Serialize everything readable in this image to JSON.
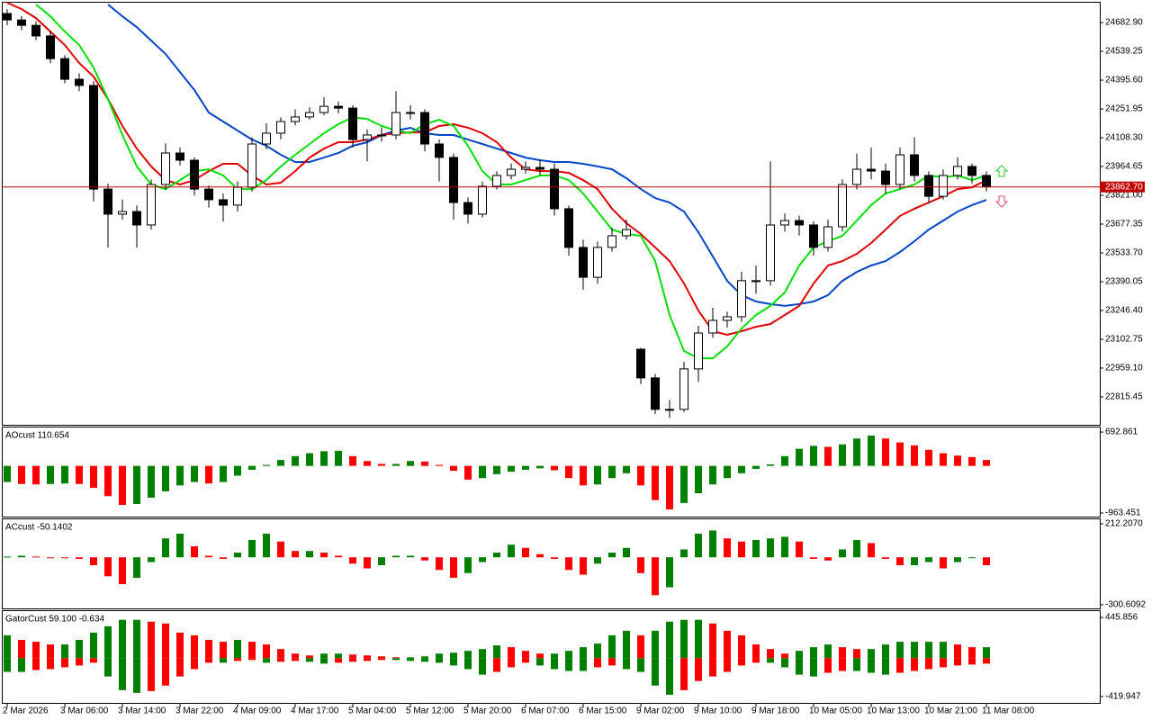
{
  "chart_data": [
    {
      "type": "candlestick",
      "categories": [
        "2 Mar 2026",
        null,
        null,
        null,
        "3 Mar 06:00",
        null,
        null,
        null,
        "3 Mar 14:00",
        null,
        null,
        null,
        "3 Mar 22:00",
        null,
        null,
        null,
        "4 Mar 09:00",
        null,
        null,
        null,
        "4 Mar 17:00",
        null,
        null,
        null,
        "5 Mar 04:00",
        null,
        null,
        null,
        "5 Mar 12:00",
        null,
        null,
        null,
        "5 Mar 20:00",
        null,
        null,
        null,
        "6 Mar 07:00",
        null,
        null,
        null,
        "6 Mar 15:00",
        null,
        null,
        null,
        "9 Mar 02:00",
        null,
        null,
        null,
        "9 Mar 10:00",
        null,
        null,
        null,
        "9 Mar 18:00",
        null,
        null,
        null,
        "10 Mar 05:00",
        null,
        null,
        null,
        "10 Mar 13:00",
        null,
        null,
        null,
        "10 Mar 21:00",
        null,
        null,
        null,
        "11 Mar 08:00"
      ],
      "open": [
        24728,
        24696,
        24669,
        24616,
        24503,
        24400,
        24369,
        23852,
        23727,
        23740,
        23673,
        23875,
        24032,
        23996,
        23852,
        23799,
        23772,
        23861,
        24077,
        24131,
        24189,
        24212,
        24234,
        24265,
        24256,
        24099,
        24122,
        24122,
        24234,
        24234,
        24077,
        24010,
        23785,
        23727,
        23866,
        23920,
        23951,
        23960,
        23951,
        23754,
        23561,
        23412,
        23561,
        23619,
        23053,
        22910,
        22753,
        22753,
        22955,
        23134,
        23197,
        23215,
        23395,
        23395,
        23673,
        23695,
        23673,
        23561,
        23664,
        23875,
        23951,
        23942,
        23875,
        24023,
        23920,
        23816,
        23920,
        23965,
        23920
      ],
      "high": [
        24750,
        24715,
        24690,
        24640,
        24520,
        24430,
        24390,
        23880,
        23800,
        23770,
        23900,
        24080,
        24060,
        24010,
        23870,
        23830,
        23890,
        24110,
        24180,
        24210,
        24250,
        24260,
        24310,
        24290,
        24270,
        24150,
        24160,
        24340,
        24270,
        24250,
        24100,
        24030,
        23810,
        23890,
        23940,
        23980,
        23990,
        24000,
        23980,
        23770,
        23600,
        23590,
        23660,
        23700,
        23060,
        22930,
        22800,
        22990,
        23170,
        23260,
        23240,
        23440,
        23470,
        23990,
        23730,
        23720,
        23690,
        23700,
        23900,
        24030,
        24060,
        23980,
        24060,
        24110,
        23940,
        23950,
        24010,
        23980,
        23940
      ],
      "low": [
        24670,
        24645,
        24595,
        24480,
        24380,
        24340,
        23790,
        23560,
        23700,
        23560,
        23650,
        23850,
        23970,
        23820,
        23760,
        23690,
        23740,
        23840,
        24050,
        24100,
        24170,
        24200,
        24220,
        24230,
        24060,
        23990,
        24090,
        24100,
        24200,
        24040,
        23890,
        23700,
        23680,
        23710,
        23850,
        23900,
        23930,
        23920,
        23720,
        23520,
        23350,
        23380,
        23540,
        23600,
        22880,
        22730,
        22710,
        22740,
        22890,
        23110,
        23160,
        23190,
        23330,
        23370,
        23640,
        23620,
        23520,
        23540,
        23640,
        23850,
        23900,
        23830,
        23850,
        23890,
        23780,
        23800,
        23900,
        23880,
        23840
      ],
      "close": [
        24696,
        24669,
        24616,
        24503,
        24400,
        24369,
        23852,
        23727,
        23740,
        23673,
        23875,
        24032,
        23996,
        23852,
        23799,
        23772,
        23861,
        24077,
        24131,
        24189,
        24212,
        24234,
        24265,
        24256,
        24099,
        24122,
        24122,
        24234,
        24234,
        24077,
        24010,
        23785,
        23727,
        23866,
        23920,
        23951,
        23960,
        23951,
        23754,
        23561,
        23412,
        23561,
        23619,
        23650,
        22910,
        22753,
        22753,
        22955,
        23134,
        23197,
        23215,
        23395,
        23395,
        23673,
        23695,
        23673,
        23561,
        23664,
        23875,
        23951,
        23942,
        23875,
        24023,
        23920,
        23816,
        23920,
        23965,
        23920,
        23863
      ],
      "up_color": "#ffffff",
      "down_color": "#000000",
      "lines": [
        {
          "color": "#0046c8",
          "values": [
            null,
            null,
            null,
            null,
            null,
            null,
            null,
            24773,
            24714,
            24660,
            24593,
            24526,
            24436,
            24346,
            24234,
            24189,
            24144,
            24099,
            24068,
            24023,
            23987,
            23987,
            24009,
            24032,
            24068,
            24086,
            24122,
            24144,
            24158,
            24131,
            24122,
            24122,
            24099,
            24077,
            24054,
            24032,
            24009,
            23996,
            23987,
            23987,
            23978,
            23965,
            23951,
            23906,
            23852,
            23807,
            23785,
            23740,
            23637,
            23516,
            23394,
            23323,
            23291,
            23278,
            23269,
            23278,
            23291,
            23323,
            23394,
            23439,
            23471,
            23493,
            23538,
            23592,
            23650,
            23695,
            23740,
            23772,
            23798
          ]
        },
        {
          "color": "#e00000",
          "values": [
            24782,
            24750,
            24705,
            24638,
            24571,
            24481,
            24413,
            24301,
            24167,
            24054,
            23965,
            23897,
            23875,
            23897,
            23942,
            23978,
            23978,
            23920,
            23875,
            23884,
            23942,
            24009,
            24054,
            24086,
            24086,
            24099,
            24122,
            24131,
            24135,
            24135,
            24167,
            24176,
            24158,
            24131,
            24086,
            24009,
            23951,
            23942,
            23942,
            23933,
            23897,
            23852,
            23754,
            23682,
            23628,
            23561,
            23493,
            23381,
            23246,
            23143,
            23125,
            23143,
            23165,
            23179,
            23224,
            23269,
            23381,
            23471,
            23493,
            23529,
            23583,
            23650,
            23718,
            23754,
            23785,
            23816,
            23852,
            23861,
            23897
          ]
        },
        {
          "color": "#00e000",
          "values": [
            null,
            null,
            24773,
            24714,
            24638,
            24571,
            24458,
            24301,
            24122,
            23965,
            23875,
            23852,
            23897,
            23942,
            23951,
            23920,
            23852,
            23852,
            23897,
            23965,
            24023,
            24077,
            24131,
            24176,
            24211,
            24202,
            24167,
            24144,
            24131,
            24176,
            24198,
            24167,
            24068,
            23942,
            23875,
            23875,
            23897,
            23920,
            23920,
            23897,
            23830,
            23740,
            23650,
            23628,
            23619,
            23493,
            23224,
            23044,
            23008,
            23008,
            23067,
            23157,
            23224,
            23269,
            23336,
            23471,
            23561,
            23592,
            23619,
            23695,
            23772,
            23830,
            23852,
            23875,
            23920,
            23911,
            23920,
            23897,
            23920
          ]
        }
      ],
      "current_price": {
        "value": 23862.7,
        "label": "23862.70"
      },
      "current_price_color": "#c00000",
      "ylim": [
        22676,
        24782
      ],
      "yticks": [
        {
          "value": 24682.9,
          "label": "24682.90"
        },
        24539.25,
        {
          "value": 24395.6,
          "label": "24395.60"
        },
        24251.95,
        {
          "value": 24108.3,
          "label": "24108.30"
        },
        23964.65,
        {
          "value": 23821.0,
          "label": "23821.00"
        },
        23677.35,
        {
          "value": 23533.7,
          "label": "23533.70"
        },
        23390.05,
        {
          "value": 23246.4,
          "label": "23246.40"
        },
        23102.75,
        {
          "value": 22959.1,
          "label": "22959.10"
        },
        22815.45
      ]
    },
    {
      "type": "bar",
      "title": "AOcust 110.654",
      "values": [
        -330,
        -370,
        -380,
        -370,
        -360,
        -370,
        -450,
        -620,
        -800,
        -780,
        -650,
        -520,
        -400,
        -330,
        -360,
        -330,
        -200,
        -80,
        20,
        120,
        200,
        260,
        300,
        310,
        200,
        100,
        40,
        40,
        100,
        90,
        20,
        -100,
        -280,
        -250,
        -170,
        -120,
        -80,
        -50,
        -90,
        -250,
        -400,
        -380,
        -250,
        -150,
        -400,
        -700,
        -890,
        -760,
        -560,
        -380,
        -250,
        -150,
        -60,
        30,
        200,
        350,
        410,
        390,
        440,
        560,
        620,
        560,
        480,
        420,
        330,
        260,
        210,
        180,
        120
      ],
      "up_color": "#008000",
      "down_color": "#ff0000",
      "ylim": [
        -1038,
        786
      ],
      "yticks": [
        -963.451,
        692.861
      ]
    },
    {
      "type": "bar",
      "title": "ACcust -50.1402",
      "values": [
        5,
        10,
        5,
        0,
        -5,
        -10,
        -50,
        -120,
        -170,
        -130,
        -30,
        120,
        150,
        70,
        10,
        -10,
        30,
        110,
        150,
        100,
        40,
        40,
        30,
        10,
        -40,
        -70,
        -50,
        10,
        10,
        -20,
        -80,
        -130,
        -100,
        -30,
        30,
        80,
        60,
        20,
        -10,
        -80,
        -110,
        -40,
        30,
        60,
        -100,
        -240,
        -190,
        50,
        150,
        170,
        120,
        100,
        110,
        120,
        130,
        100,
        -10,
        -20,
        50,
        110,
        90,
        -10,
        -50,
        -50,
        -30,
        -70,
        -30,
        0,
        -50
      ],
      "up_color": "#008000",
      "down_color": "#ff0000",
      "ylim": [
        -323.7,
        241.0
      ],
      "yticks": [
        -300.6092,
        {
          "value": 212.207,
          "label": "212.2070"
        }
      ]
    },
    {
      "type": "gator",
      "title": "GatorCust 59.100 -0.634",
      "series": [
        {
          "values": [
            250,
            200,
            180,
            150,
            150,
            200,
            280,
            350,
            420,
            420,
            400,
            380,
            280,
            250,
            200,
            180,
            200,
            180,
            150,
            100,
            50,
            30,
            50,
            50,
            40,
            30,
            20,
            10,
            10,
            20,
            50,
            60,
            80,
            100,
            140,
            120,
            80,
            50,
            50,
            80,
            120,
            160,
            250,
            300,
            250,
            300,
            400,
            420,
            420,
            380,
            300,
            250,
            150,
            100,
            50,
            80,
            120,
            150,
            120,
            100,
            100,
            150,
            180,
            180,
            180,
            180,
            150,
            120,
            120
          ]
        },
        {
          "values": [
            -150,
            -150,
            -130,
            -120,
            -100,
            -80,
            -50,
            -200,
            -350,
            -380,
            -360,
            -300,
            -200,
            -120,
            -50,
            -50,
            -30,
            -20,
            -50,
            -40,
            -30,
            -40,
            -60,
            -50,
            -40,
            -30,
            -20,
            -20,
            -30,
            -40,
            -50,
            -80,
            -120,
            -180,
            -150,
            -100,
            -50,
            -80,
            -120,
            -140,
            -140,
            -100,
            -80,
            -120,
            -150,
            -300,
            -400,
            -350,
            -250,
            -200,
            -150,
            -80,
            -50,
            -50,
            -100,
            -180,
            -200,
            -160,
            -140,
            -140,
            -160,
            -180,
            -160,
            -140,
            -120,
            -100,
            -80,
            -70,
            -60
          ]
        }
      ],
      "up_color": "#008000",
      "down_color": "#ff0000",
      "ylim": [
        -489.6,
        515.5
      ],
      "yticks": [
        -419.947,
        445.856
      ]
    }
  ]
}
